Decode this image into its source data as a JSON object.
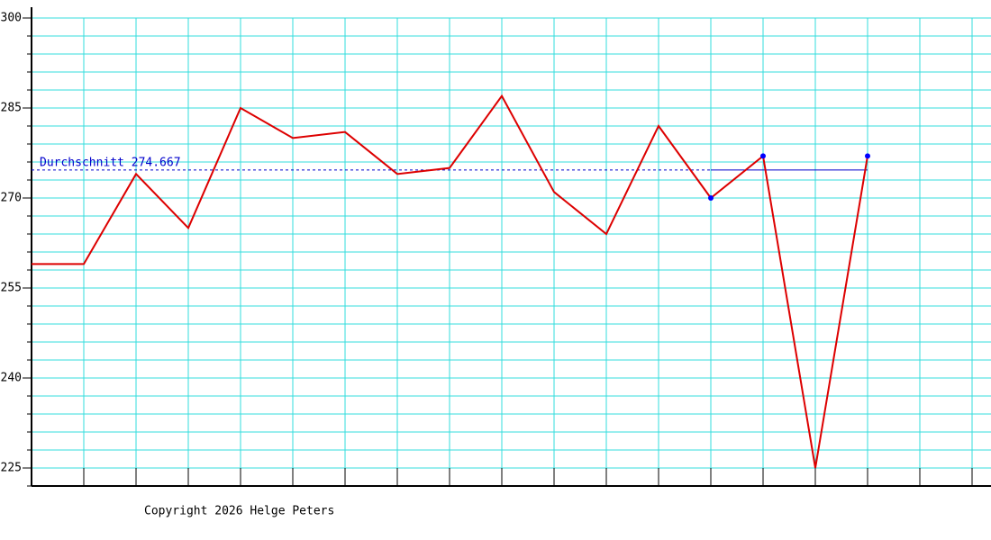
{
  "chart_data": {
    "type": "line",
    "categories": [
      null,
      null,
      null,
      null,
      null,
      null,
      null,
      null,
      null,
      null,
      null,
      null,
      null,
      null,
      null,
      null,
      null,
      null,
      null
    ],
    "values": [
      259,
      259,
      274,
      265,
      285,
      280,
      281,
      274,
      275,
      287,
      271,
      264,
      282,
      270,
      277,
      225,
      277,
      null,
      null
    ],
    "color": "#dd0000",
    "ylim": [
      222,
      300
    ],
    "yticks": [
      225,
      240,
      255,
      270,
      285,
      300
    ],
    "minor_yticks": [
      222,
      225,
      228,
      231,
      234,
      237,
      240,
      243,
      246,
      249,
      252,
      255,
      258,
      261,
      264,
      267,
      270,
      273,
      276,
      279,
      282,
      285,
      288,
      291,
      294,
      297,
      300
    ],
    "grid": true,
    "grid_color": "#33dddd",
    "markers": {
      "color": "#0000ff",
      "indices": [
        13,
        14,
        16
      ]
    },
    "average": {
      "label": "Durchschnitt 274.667",
      "value": 274.667,
      "color": "#0000cc",
      "solid_from": 13
    },
    "footer": "Copyright 2026 Helge Peters"
  }
}
